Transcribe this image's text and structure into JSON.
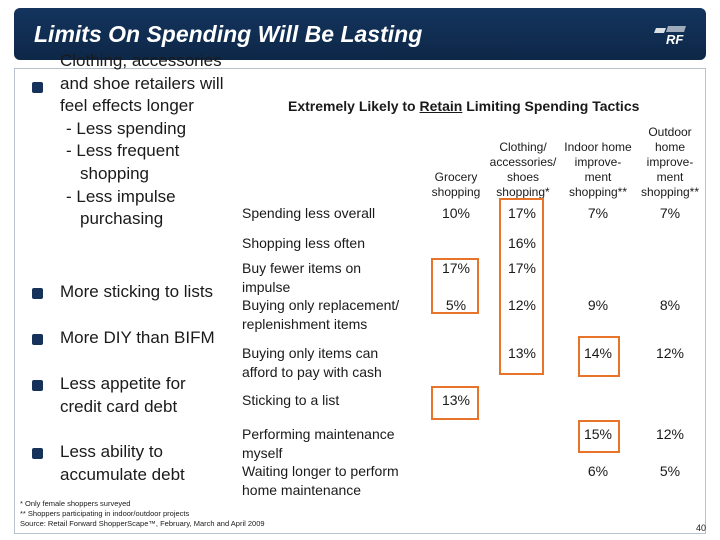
{
  "header": {
    "title": "Limits On Spending Will Be Lasting",
    "logo_text": "RF"
  },
  "bullets": [
    {
      "lines": [
        "Clothing, accessories",
        "and shoe retailers will",
        "feel effects longer",
        "- Less spending",
        "- Less frequent",
        "shopping",
        "- Less impulse",
        "purchasing"
      ]
    },
    {
      "lines": [
        "More sticking to lists"
      ]
    },
    {
      "lines": [
        "More DIY than BIFM"
      ]
    },
    {
      "lines": [
        "Less appetite for",
        "credit card debt"
      ]
    },
    {
      "lines": [
        "Less ability to",
        "accumulate debt"
      ]
    }
  ],
  "table": {
    "title_prefix": "Extremely Likely to ",
    "title_underlined": "Retain",
    "title_suffix": " Limiting Spending Tactics",
    "columns": [
      {
        "lines": [
          "Grocery",
          "shopping"
        ]
      },
      {
        "lines": [
          "Clothing/",
          "accessories/",
          "shoes",
          "shopping*"
        ]
      },
      {
        "lines": [
          "Indoor home",
          "improve-",
          "ment",
          "shopping**"
        ]
      },
      {
        "lines": [
          "Outdoor",
          "home",
          "improve-",
          "ment",
          "shopping**"
        ]
      }
    ],
    "rows": [
      {
        "label": [
          "Spending less overall"
        ],
        "values": [
          "10%",
          "17%",
          "7%",
          "7%"
        ]
      },
      {
        "label": [
          "Shopping less often"
        ],
        "values": [
          "",
          "16%",
          "",
          ""
        ]
      },
      {
        "label": [
          "Buy fewer items on",
          "impulse"
        ],
        "values": [
          "17%",
          "17%",
          "",
          ""
        ]
      },
      {
        "label": [
          "Buying only replacement/",
          "replenishment items"
        ],
        "values": [
          "5%",
          "12%",
          "9%",
          "8%"
        ]
      },
      {
        "label": [
          "Buying only items can",
          "afford to pay with cash"
        ],
        "values": [
          "",
          "13%",
          "14%",
          "12%"
        ]
      },
      {
        "label": [
          "Sticking to a list"
        ],
        "values": [
          "13%",
          "",
          "",
          ""
        ]
      },
      {
        "label": [
          "Performing maintenance",
          "myself"
        ],
        "values": [
          "",
          "",
          "15%",
          "12%"
        ]
      },
      {
        "label": [
          "Waiting longer to perform",
          "home maintenance"
        ],
        "values": [
          "",
          "",
          "6%",
          "5%"
        ]
      }
    ]
  },
  "footnotes": [
    "* Only female shoppers surveyed",
    "** Shoppers participating in indoor/outdoor projects",
    "Source: Retail Forward ShopperScape™, February, March and April 2009"
  ],
  "page_number": "40",
  "colors": {
    "header_bg": "#14345e",
    "bullet": "#16325a",
    "highlight": "#e8742a"
  }
}
